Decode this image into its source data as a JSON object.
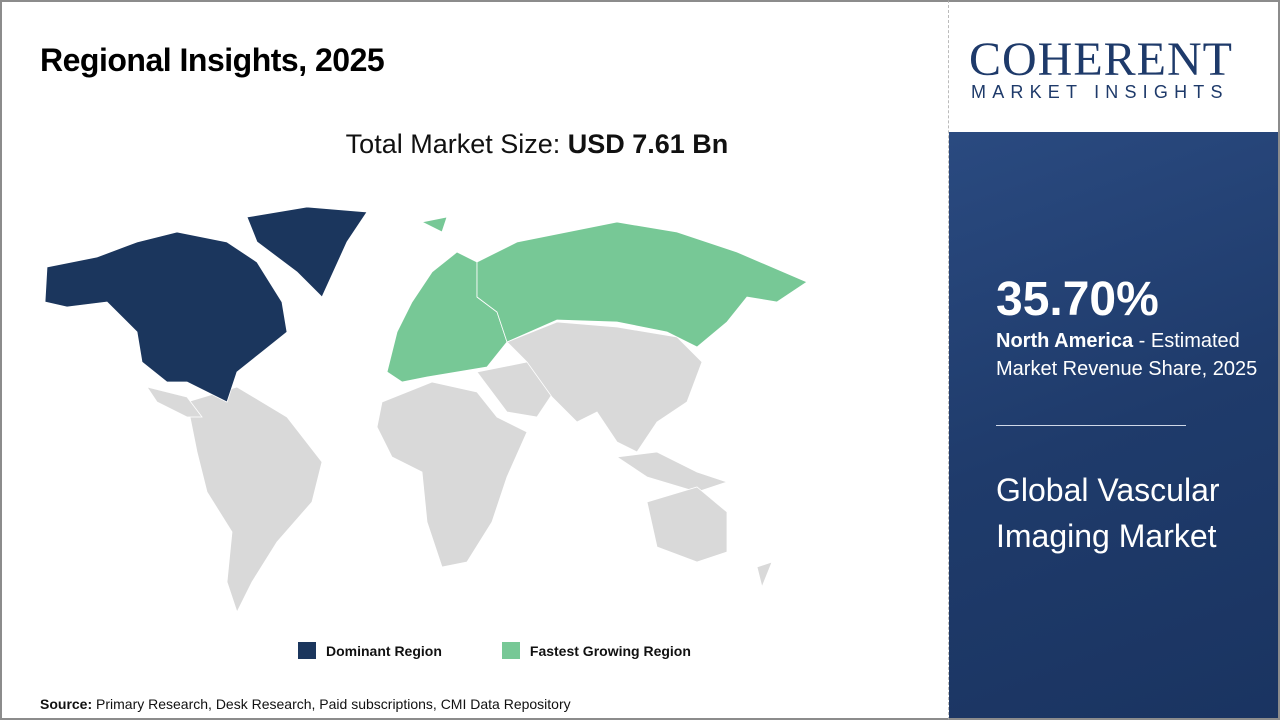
{
  "title": "Regional Insights, 2025",
  "total_label": "Total Market Size: ",
  "total_value": "USD 7.61 Bn",
  "legend": [
    {
      "label": "Dominant Region",
      "color": "#1b365d"
    },
    {
      "label": "Fastest Growing Region",
      "color": "#77c896"
    }
  ],
  "source_label": "Source:",
  "source_text": " Primary Research, Desk Research, Paid subscriptions, CMI Data Repository",
  "logo": {
    "line1": "COHERENT",
    "line2": "MARKET INSIGHTS"
  },
  "highlight": {
    "percent": "35.70%",
    "region": "North America",
    "desc": " - Estimated Market Revenue Share, 2025"
  },
  "market_name": "Global Vascular Imaging Market",
  "colors": {
    "dominant": "#1b365d",
    "fastest": "#77c896",
    "other": "#d9d9d9",
    "panel": "#1f3b6b"
  }
}
